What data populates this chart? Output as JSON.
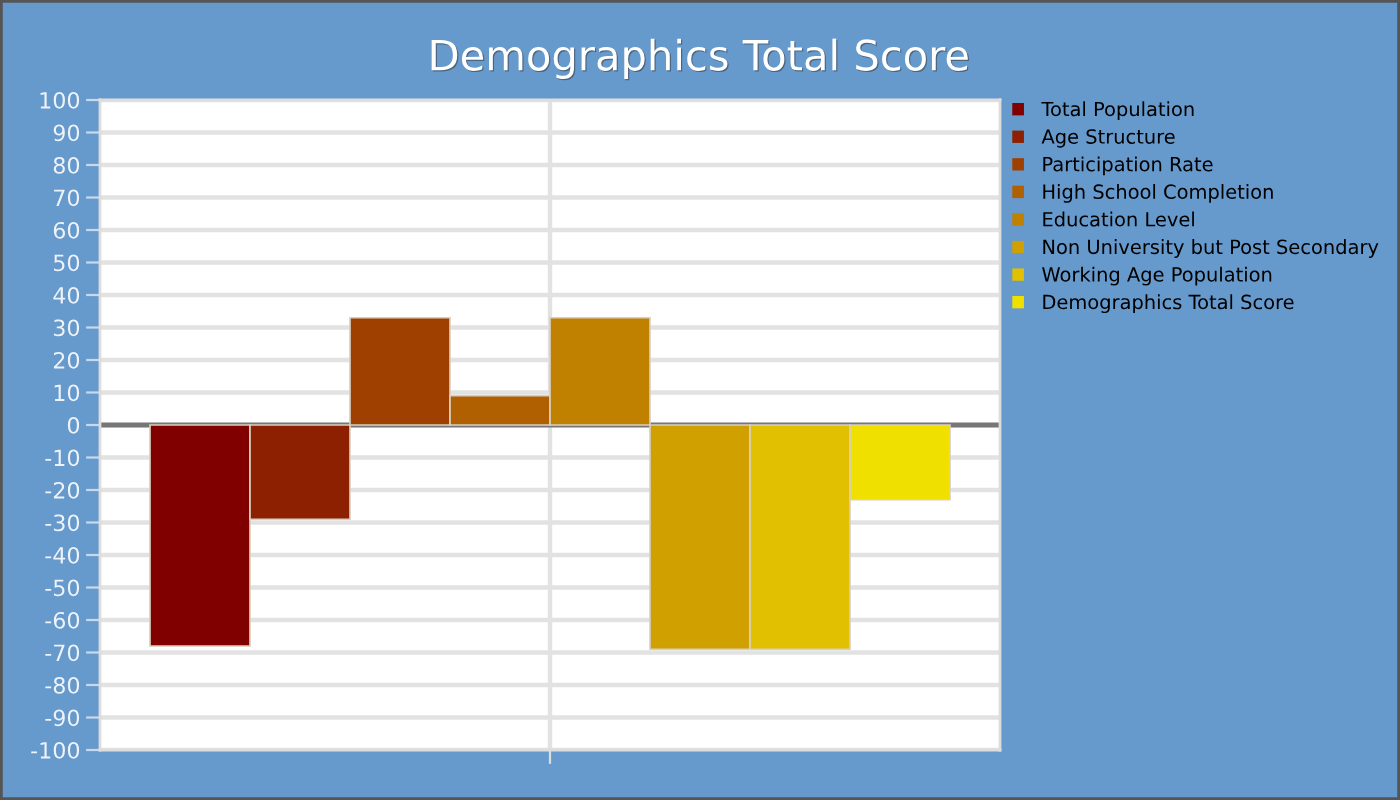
{
  "chart_data": {
    "type": "bar",
    "title": "Demographics Total Score",
    "categories": [
      null
    ],
    "series": [
      {
        "name": "Total Population",
        "color": "#800000",
        "values": [
          -68
        ]
      },
      {
        "name": "Age Structure",
        "color": "#8c2000",
        "values": [
          -29
        ]
      },
      {
        "name": "Participation Rate",
        "color": "#a04000",
        "values": [
          33
        ]
      },
      {
        "name": "High School Completion",
        "color": "#b06000",
        "values": [
          9
        ]
      },
      {
        "name": "Education Level",
        "color": "#c08000",
        "values": [
          33
        ]
      },
      {
        "name": "Non University but Post Secondary",
        "color": "#d0a000",
        "values": [
          -69
        ]
      },
      {
        "name": "Working Age Population",
        "color": "#e0c000",
        "values": [
          -69
        ]
      },
      {
        "name": "Demographics Total Score",
        "color": "#f0e000",
        "values": [
          -23
        ]
      }
    ],
    "ylim": [
      -100,
      100
    ],
    "yticks": [
      -100,
      -90,
      -80,
      -70,
      -60,
      -50,
      -40,
      -30,
      -20,
      -10,
      0,
      10,
      20,
      30,
      40,
      50,
      60,
      70,
      80,
      90,
      100
    ],
    "grid": true,
    "legend": "right"
  }
}
